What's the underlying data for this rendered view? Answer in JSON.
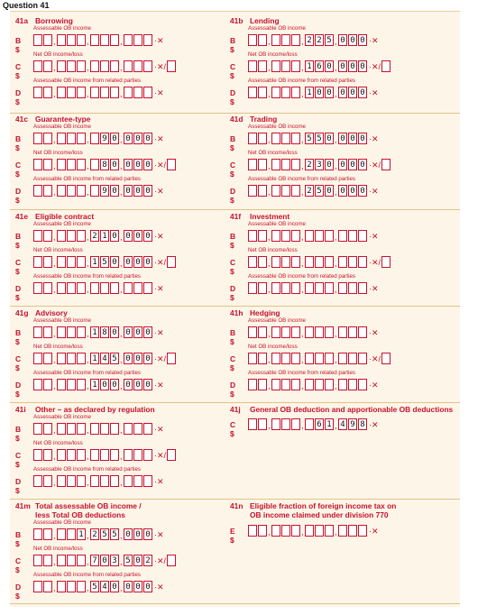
{
  "question_title": "Question 41",
  "labels": {
    "assessable": "Assessable OB income",
    "net": "Net OB income/loss",
    "related": "Assessable OB income from related parties",
    "B": "B $",
    "C": "C $",
    "D": "D $",
    "E": "E $",
    "suffix": "·✕",
    "suffix_loss": "·✕/"
  },
  "items": [
    {
      "code": "41a",
      "name": "Borrowing",
      "rows": [
        {
          "line": "B",
          "sub": "assessable",
          "value": ""
        },
        {
          "line": "C",
          "sub": "net",
          "value": "",
          "loss": true
        },
        {
          "line": "D",
          "sub": "related",
          "value": ""
        }
      ]
    },
    {
      "code": "41b",
      "name": "Lending",
      "rows": [
        {
          "line": "B",
          "sub": "assessable",
          "value": "225000"
        },
        {
          "line": "C",
          "sub": "net",
          "value": "160000",
          "loss": true
        },
        {
          "line": "D",
          "sub": "related",
          "value": "100000"
        }
      ]
    },
    {
      "code": "41c",
      "name": "Guarantee-type",
      "rows": [
        {
          "line": "B",
          "sub": "assessable",
          "value": "90000"
        },
        {
          "line": "C",
          "sub": "net",
          "value": "80000",
          "loss": true
        },
        {
          "line": "D",
          "sub": "related",
          "value": "90000"
        }
      ]
    },
    {
      "code": "41d",
      "name": "Trading",
      "rows": [
        {
          "line": "B",
          "sub": "assessable",
          "value": "550000"
        },
        {
          "line": "C",
          "sub": "net",
          "value": "230000",
          "loss": true
        },
        {
          "line": "D",
          "sub": "related",
          "value": "250000"
        }
      ]
    },
    {
      "code": "41e",
      "name": "Eligible contract",
      "rows": [
        {
          "line": "B",
          "sub": "assessable",
          "value": "210000"
        },
        {
          "line": "C",
          "sub": "net",
          "value": "150000",
          "loss": true
        },
        {
          "line": "D",
          "sub": "related",
          "value": ""
        }
      ]
    },
    {
      "code": "41f",
      "name": "Investment",
      "rows": [
        {
          "line": "B",
          "sub": "assessable",
          "value": ""
        },
        {
          "line": "C",
          "sub": "net",
          "value": "",
          "loss": true
        },
        {
          "line": "D",
          "sub": "related",
          "value": ""
        }
      ]
    },
    {
      "code": "41g",
      "name": "Advisory",
      "rows": [
        {
          "line": "B",
          "sub": "assessable",
          "value": "180000"
        },
        {
          "line": "C",
          "sub": "net",
          "value": "145000",
          "loss": true
        },
        {
          "line": "D",
          "sub": "related",
          "value": "100000"
        }
      ]
    },
    {
      "code": "41h",
      "name": "Hedging",
      "rows": [
        {
          "line": "B",
          "sub": "assessable",
          "value": ""
        },
        {
          "line": "C",
          "sub": "net",
          "value": "",
          "loss": true
        },
        {
          "line": "D",
          "sub": "related",
          "value": ""
        }
      ]
    },
    {
      "code": "41i",
      "name": "Other – as declared by regulation",
      "rows": [
        {
          "line": "B",
          "sub": "assessable",
          "value": ""
        },
        {
          "line": "C",
          "sub": "net",
          "value": "",
          "loss": true
        },
        {
          "line": "D",
          "sub": "related",
          "value": ""
        }
      ]
    },
    {
      "code": "41j",
      "name": "General OB deduction and apportionable OB deductions",
      "rows": [
        {
          "line": "C",
          "sub": "",
          "value": "61498"
        }
      ]
    },
    {
      "code": "41m",
      "name": "Total assessable OB income /\nless Total OB deductions",
      "rows": [
        {
          "line": "B",
          "sub": "assessable",
          "value": "1255000"
        },
        {
          "line": "C",
          "sub": "net",
          "value": "703502",
          "loss": true
        },
        {
          "line": "D",
          "sub": "related",
          "value": "540000"
        }
      ]
    },
    {
      "code": "41n",
      "name": "Eligible fraction of foreign income tax on\nOB income claimed under division 770",
      "rows": [
        {
          "line": "E",
          "sub": "",
          "value": ""
        }
      ]
    }
  ]
}
